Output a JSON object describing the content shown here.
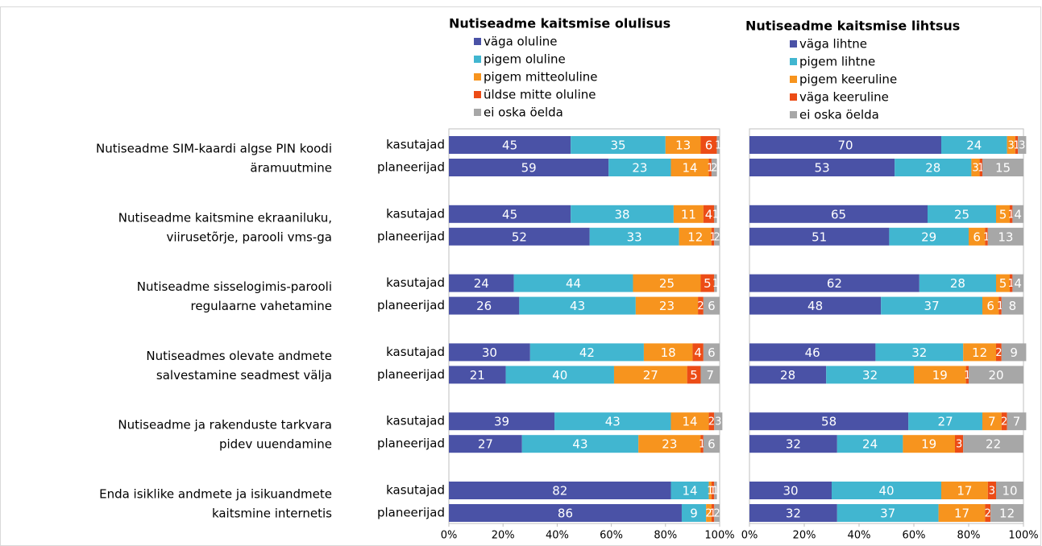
{
  "chart_data": [
    {
      "type": "bar",
      "title": "Nutiseadme kaitsmise olulisus",
      "groups": [
        [
          "Nutiseadme SIM-kaardi algse PIN koodi",
          "äramuutmine"
        ],
        [
          "Nutiseadme kaitsmine ekraaniluku,",
          "viirusetõrje, parooli vms-ga"
        ],
        [
          "Nutiseadme sisselogimis-parooli",
          "regulaarne vahetamine"
        ],
        [
          "Nutiseadmes olevate andmete",
          "salvestamine seadmest välja"
        ],
        [
          "Nutiseadme ja rakenduste tarkvara",
          "pidev uuendamine"
        ],
        [
          "Enda isiklike andmete ja isikuandmete",
          "kaitsmine internetis"
        ]
      ],
      "subcategories": [
        "kasutajad",
        "planeerijad"
      ],
      "series": [
        {
          "name": "väga oluline",
          "color": "#4a52a6",
          "values": [
            45,
            59,
            45,
            52,
            24,
            26,
            30,
            21,
            39,
            27,
            82,
            86
          ]
        },
        {
          "name": "pigem oluline",
          "color": "#41b6d0",
          "values": [
            35,
            23,
            38,
            33,
            44,
            43,
            42,
            40,
            43,
            43,
            14,
            9
          ]
        },
        {
          "name": "pigem mitteoluline",
          "color": "#f7941e",
          "values": [
            13,
            14,
            11,
            12,
            25,
            23,
            18,
            27,
            14,
            23,
            1,
            2
          ]
        },
        {
          "name": "üldse mitte oluline",
          "color": "#ec4c16",
          "values": [
            6,
            1,
            4,
            1,
            5,
            2,
            4,
            5,
            2,
            1,
            1,
            1
          ]
        },
        {
          "name": "ei oska öelda",
          "color": "#a7a7a7",
          "values": [
            1,
            2,
            1,
            2,
            1,
            6,
            6,
            7,
            3,
            6,
            1,
            2
          ]
        }
      ],
      "xlim": [
        0,
        100
      ],
      "xticks": [
        {
          "value": 0,
          "label": "0%"
        },
        {
          "value": 20,
          "label": "20%"
        },
        {
          "value": 40,
          "label": "40%"
        },
        {
          "value": 60,
          "label": "60%"
        },
        {
          "value": 80,
          "label": "80%"
        },
        {
          "value": 100,
          "label": "100%"
        }
      ]
    },
    {
      "type": "bar",
      "title": "Nutiseadme kaitsmise lihtsus",
      "series": [
        {
          "name": "väga lihtne",
          "color": "#4a52a6",
          "values": [
            70,
            53,
            65,
            51,
            62,
            48,
            46,
            28,
            58,
            32,
            30,
            32
          ]
        },
        {
          "name": "pigem lihtne",
          "color": "#41b6d0",
          "values": [
            24,
            28,
            25,
            29,
            28,
            37,
            32,
            32,
            27,
            24,
            40,
            37
          ]
        },
        {
          "name": "pigem keeruline",
          "color": "#f7941e",
          "values": [
            3,
            3,
            5,
            6,
            5,
            6,
            12,
            19,
            7,
            19,
            17,
            17
          ]
        },
        {
          "name": "väga keeruline",
          "color": "#ec4c16",
          "values": [
            1,
            1,
            1,
            1,
            1,
            1,
            2,
            1,
            2,
            3,
            3,
            2
          ]
        },
        {
          "name": "ei oska öelda",
          "color": "#a7a7a7",
          "values": [
            3,
            15,
            4,
            13,
            4,
            8,
            9,
            20,
            7,
            22,
            10,
            12
          ]
        }
      ],
      "xlim": [
        0,
        100
      ],
      "xticks": [
        {
          "value": 0,
          "label": "0%"
        },
        {
          "value": 20,
          "label": "20%"
        },
        {
          "value": 40,
          "label": "40%"
        },
        {
          "value": 60,
          "label": "60%"
        },
        {
          "value": 80,
          "label": "80%"
        },
        {
          "value": 100,
          "label": "100%"
        }
      ]
    }
  ]
}
